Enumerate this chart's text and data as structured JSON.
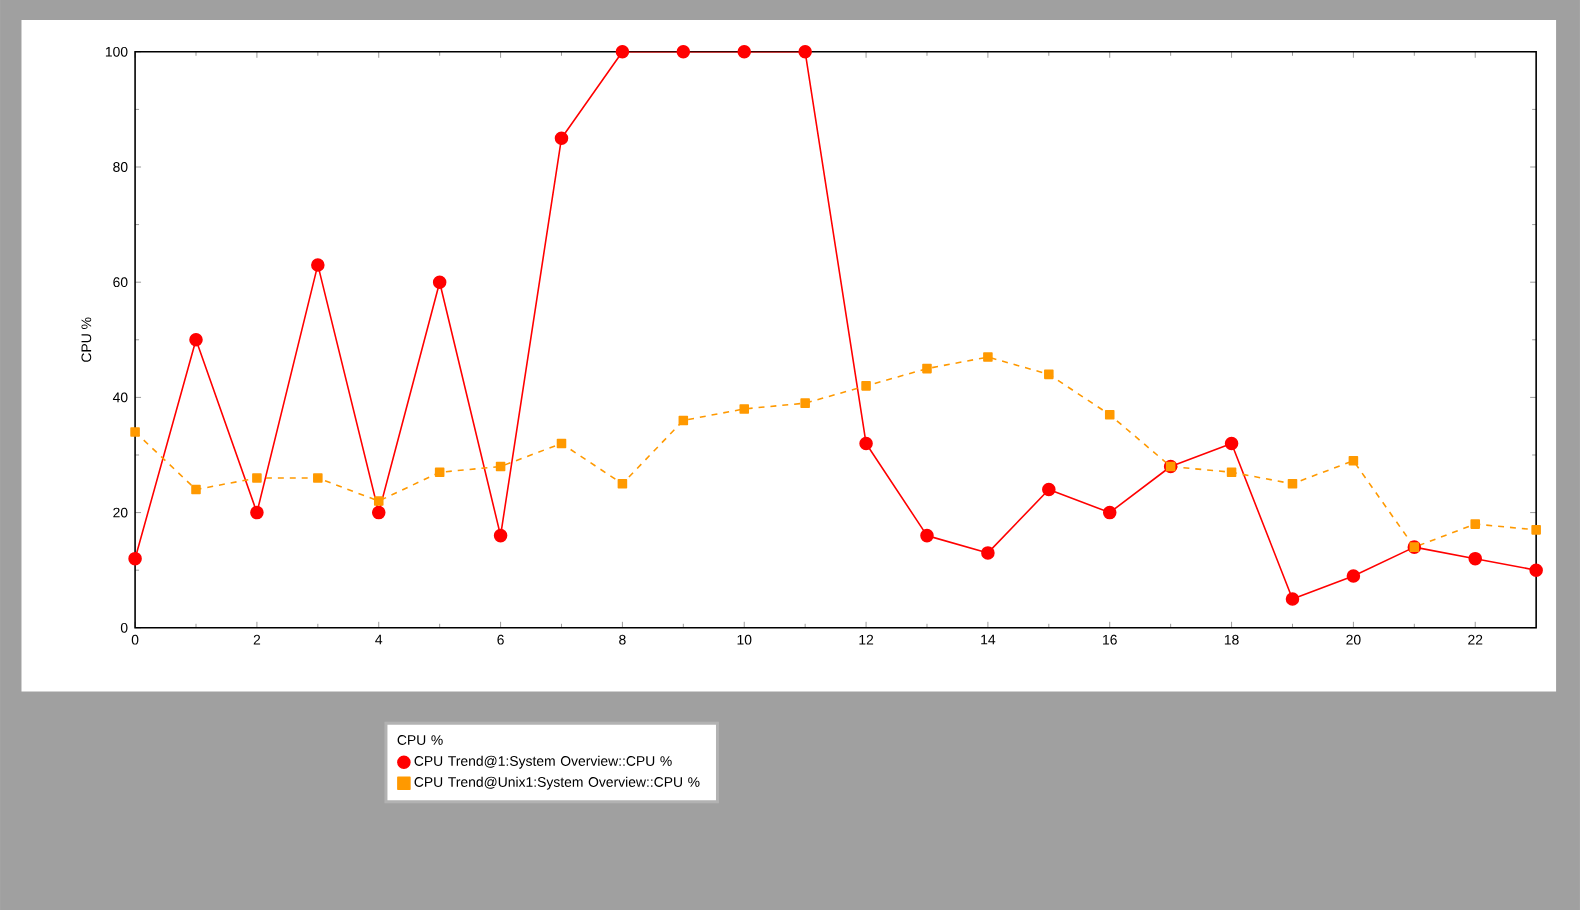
{
  "chart_data": {
    "type": "line",
    "ylabel": "CPU %",
    "legend_title": "CPU %",
    "x": [
      0,
      1,
      2,
      3,
      4,
      5,
      6,
      7,
      8,
      9,
      10,
      11,
      12,
      13,
      14,
      15,
      16,
      17,
      18,
      19,
      20,
      21,
      22,
      23
    ],
    "series": [
      {
        "name": "CPU Trend@1:System Overview::CPU %",
        "color": "#ff0000",
        "marker": "circle",
        "line_style": "solid",
        "values": [
          12,
          50,
          20,
          63,
          20,
          60,
          16,
          85,
          100,
          100,
          100,
          100,
          32,
          16,
          13,
          24,
          20,
          28,
          32,
          5,
          9,
          14,
          12,
          10
        ]
      },
      {
        "name": "CPU Trend@Unix1:System Overview::CPU %",
        "color": "#ff9900",
        "marker": "square",
        "line_style": "dashed",
        "values": [
          34,
          24,
          26,
          26,
          22,
          27,
          28,
          32,
          25,
          36,
          38,
          39,
          42,
          45,
          47,
          44,
          37,
          28,
          27,
          25,
          29,
          14,
          18,
          17
        ]
      }
    ],
    "xlim": [
      0,
      23
    ],
    "xticks": [
      0,
      2,
      4,
      6,
      8,
      10,
      12,
      14,
      16,
      18,
      20,
      22
    ],
    "ylim": [
      0,
      100
    ],
    "yticks": [
      0,
      20,
      40,
      60,
      80,
      100
    ],
    "grid": false,
    "legend": "bottom"
  }
}
